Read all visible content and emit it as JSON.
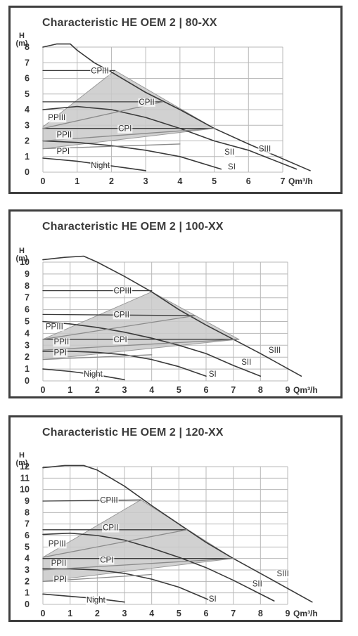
{
  "colors": {
    "curve": "#3a3a3a",
    "grid": "#b8b8b8",
    "fill": "#c9c9c9",
    "border": "#3e3e3e",
    "text": "#333333"
  },
  "chart_data": [
    {
      "type": "line",
      "title": "Characteristic HE OEM 2 | 80-XX",
      "ylabel": "H (m)",
      "ylabel_top": "H",
      "ylabel_bottom": "(m)",
      "xlabel": "Qm³/h",
      "xlim": [
        0,
        7
      ],
      "ylim": [
        0,
        8
      ],
      "x_ticks": [
        "0",
        "1",
        "2",
        "3",
        "4",
        "5",
        "6",
        "7"
      ],
      "y_ticks": [
        "0",
        "1",
        "2",
        "3",
        "4",
        "5",
        "6",
        "7",
        "8"
      ],
      "grid": true,
      "operating_area": [
        [
          0,
          2.9
        ],
        [
          2.1,
          6.5
        ],
        [
          5.0,
          2.8
        ],
        [
          0,
          1.5
        ]
      ],
      "series": [
        {
          "name": "SIII",
          "x": [
            0,
            0.4,
            0.8,
            1.0,
            1.5,
            2.0,
            3.0,
            4.0,
            5.0,
            6.0,
            7.8
          ],
          "y": [
            8.0,
            8.2,
            8.2,
            7.8,
            7.0,
            6.4,
            5.1,
            4.0,
            2.8,
            1.8,
            0.1
          ]
        },
        {
          "name": "SII",
          "x": [
            0,
            1.0,
            2.0,
            3.0,
            4.0,
            5.0,
            6.0,
            7.4
          ],
          "y": [
            4.0,
            4.2,
            4.0,
            3.5,
            2.8,
            2.0,
            1.4,
            0.2
          ]
        },
        {
          "name": "SI",
          "x": [
            0,
            1.0,
            2.0,
            3.0,
            4.0,
            5.2
          ],
          "y": [
            2.0,
            1.9,
            1.7,
            1.4,
            1.0,
            0.2
          ]
        },
        {
          "name": "Night",
          "x": [
            0,
            1.0,
            2.0,
            3.0
          ],
          "y": [
            0.9,
            0.7,
            0.4,
            0.1
          ]
        },
        {
          "name": "CPIII",
          "x": [
            0,
            2.1
          ],
          "y": [
            6.5,
            6.5
          ]
        },
        {
          "name": "CPII",
          "x": [
            0,
            3.5
          ],
          "y": [
            4.5,
            4.5
          ]
        },
        {
          "name": "CPI",
          "x": [
            0,
            5.0
          ],
          "y": [
            2.8,
            2.8
          ]
        },
        {
          "name": "PPIII",
          "x": [
            0,
            3.5
          ],
          "y": [
            2.8,
            4.5
          ]
        },
        {
          "name": "PPII",
          "x": [
            0,
            5.0
          ],
          "y": [
            2.0,
            2.8
          ]
        },
        {
          "name": "PPI",
          "x": [
            0,
            4.0
          ],
          "y": [
            1.5,
            1.8
          ]
        }
      ],
      "labels": [
        {
          "text": "CPIII",
          "x": 1.4,
          "y": 6.5
        },
        {
          "text": "CPII",
          "x": 2.8,
          "y": 4.5
        },
        {
          "text": "CPI",
          "x": 2.2,
          "y": 2.8
        },
        {
          "text": "PPIII",
          "x": 0.15,
          "y": 3.5
        },
        {
          "text": "PPII",
          "x": 0.4,
          "y": 2.4
        },
        {
          "text": "PPI",
          "x": 0.4,
          "y": 1.35
        },
        {
          "text": "Night",
          "x": 1.4,
          "y": 0.45
        },
        {
          "text": "SIII",
          "x": 6.3,
          "y": 1.5
        },
        {
          "text": "SII",
          "x": 5.3,
          "y": 1.3
        },
        {
          "text": "SI",
          "x": 5.4,
          "y": 0.35
        }
      ]
    },
    {
      "type": "line",
      "title": "Characteristic HE OEM 2 | 100-XX",
      "ylabel": "H (m)",
      "ylabel_top": "H",
      "ylabel_bottom": "(m)",
      "xlabel": "Qm³/h",
      "xlim": [
        0,
        9
      ],
      "ylim": [
        0,
        10
      ],
      "x_ticks": [
        "0",
        "1",
        "2",
        "3",
        "4",
        "5",
        "6",
        "7",
        "8",
        "9"
      ],
      "y_ticks": [
        "0",
        "1",
        "2",
        "3",
        "4",
        "5",
        "6",
        "7",
        "8",
        "9",
        "10"
      ],
      "grid": true,
      "operating_area": [
        [
          0,
          3.5
        ],
        [
          4.0,
          7.5
        ],
        [
          7.2,
          3.5
        ],
        [
          0,
          1.8
        ]
      ],
      "series": [
        {
          "name": "SIII",
          "x": [
            0,
            0.8,
            1.5,
            2.0,
            3.0,
            4.0,
            5.0,
            6.0,
            7.0,
            8.0,
            9.5
          ],
          "y": [
            10.2,
            10.4,
            10.5,
            10.0,
            8.8,
            7.5,
            6.0,
            4.7,
            3.5,
            2.3,
            0.4
          ]
        },
        {
          "name": "SII",
          "x": [
            0,
            1.0,
            2.0,
            3.0,
            4.0,
            5.0,
            6.0,
            7.0,
            8.0
          ],
          "y": [
            5.0,
            4.8,
            4.5,
            4.1,
            3.6,
            3.0,
            2.3,
            1.3,
            0.4
          ]
        },
        {
          "name": "SI",
          "x": [
            0,
            1.0,
            2.0,
            3.0,
            4.0,
            5.0,
            6.0
          ],
          "y": [
            2.5,
            2.5,
            2.4,
            2.2,
            1.8,
            1.2,
            0.4
          ]
        },
        {
          "name": "Night",
          "x": [
            0,
            1.0,
            2.0,
            3.0
          ],
          "y": [
            1.0,
            0.8,
            0.5,
            0.1
          ]
        },
        {
          "name": "CPIII",
          "x": [
            0,
            4.0
          ],
          "y": [
            7.6,
            7.6
          ]
        },
        {
          "name": "CPII",
          "x": [
            0,
            5.6
          ],
          "y": [
            5.6,
            5.5
          ]
        },
        {
          "name": "CPI",
          "x": [
            0,
            7.2
          ],
          "y": [
            3.5,
            3.5
          ]
        },
        {
          "name": "PPIII",
          "x": [
            0,
            5.6
          ],
          "y": [
            3.5,
            5.5
          ]
        },
        {
          "name": "PPII",
          "x": [
            0,
            7.2
          ],
          "y": [
            2.6,
            3.5
          ]
        },
        {
          "name": "PPI",
          "x": [
            0,
            4.0
          ],
          "y": [
            1.8,
            2.2
          ]
        }
      ],
      "labels": [
        {
          "text": "CPIII",
          "x": 2.6,
          "y": 7.6
        },
        {
          "text": "CPII",
          "x": 2.6,
          "y": 5.6
        },
        {
          "text": "CPI",
          "x": 2.6,
          "y": 3.5
        },
        {
          "text": "PPIII",
          "x": 0.1,
          "y": 4.6
        },
        {
          "text": "PPII",
          "x": 0.4,
          "y": 3.3
        },
        {
          "text": "PPI",
          "x": 0.4,
          "y": 2.4
        },
        {
          "text": "Night",
          "x": 1.5,
          "y": 0.6
        },
        {
          "text": "SIII",
          "x": 8.3,
          "y": 2.6
        },
        {
          "text": "SII",
          "x": 7.3,
          "y": 1.6
        },
        {
          "text": "SI",
          "x": 6.1,
          "y": 0.6
        }
      ]
    },
    {
      "type": "line",
      "title": "Characteristic HE OEM 2 | 120-XX",
      "ylabel": "H (m)",
      "ylabel_top": "H",
      "ylabel_bottom": "(m)",
      "xlabel": "Qm³/h",
      "xlim": [
        0,
        9
      ],
      "ylim": [
        0,
        12
      ],
      "x_ticks": [
        "0",
        "1",
        "2",
        "3",
        "4",
        "5",
        "6",
        "7",
        "8",
        "9"
      ],
      "y_ticks": [
        "0",
        "1",
        "2",
        "3",
        "4",
        "5",
        "6",
        "7",
        "8",
        "9",
        "10",
        "11",
        "12"
      ],
      "grid": true,
      "operating_area": [
        [
          0,
          4.1
        ],
        [
          3.6,
          9.1
        ],
        [
          7.0,
          4.0
        ],
        [
          0,
          2.0
        ]
      ],
      "series": [
        {
          "name": "SIII",
          "x": [
            0,
            0.8,
            1.5,
            2.0,
            3.0,
            4.0,
            5.0,
            6.0,
            7.0,
            8.0,
            9.9
          ],
          "y": [
            11.9,
            12.1,
            12.1,
            11.7,
            10.3,
            8.6,
            7.0,
            5.4,
            4.0,
            2.7,
            0.2
          ]
        },
        {
          "name": "SII",
          "x": [
            0,
            1.0,
            2.0,
            3.0,
            4.0,
            5.0,
            6.0,
            7.0,
            8.5
          ],
          "y": [
            6.1,
            6.2,
            6.0,
            5.6,
            4.9,
            4.1,
            3.2,
            2.1,
            0.3
          ]
        },
        {
          "name": "SI",
          "x": [
            0,
            1.0,
            2.0,
            3.0,
            4.0,
            5.0,
            6.2
          ],
          "y": [
            3.1,
            3.1,
            3.0,
            2.7,
            2.2,
            1.5,
            0.3
          ]
        },
        {
          "name": "Night",
          "x": [
            0,
            1.0,
            2.0,
            3.0
          ],
          "y": [
            0.9,
            0.7,
            0.5,
            0.2
          ]
        },
        {
          "name": "CPIII",
          "x": [
            0,
            3.6
          ],
          "y": [
            9.0,
            9.1
          ]
        },
        {
          "name": "CPII",
          "x": [
            0,
            5.3
          ],
          "y": [
            6.5,
            6.5
          ]
        },
        {
          "name": "CPI",
          "x": [
            0,
            7.0
          ],
          "y": [
            4.0,
            4.0
          ]
        },
        {
          "name": "PPIII",
          "x": [
            0,
            5.3
          ],
          "y": [
            4.1,
            6.5
          ]
        },
        {
          "name": "PPII",
          "x": [
            0,
            7.0
          ],
          "y": [
            3.0,
            4.0
          ]
        },
        {
          "name": "PPI",
          "x": [
            0,
            4.0
          ],
          "y": [
            2.0,
            2.6
          ]
        }
      ],
      "labels": [
        {
          "text": "CPIII",
          "x": 2.1,
          "y": 9.1
        },
        {
          "text": "CPII",
          "x": 2.2,
          "y": 6.7
        },
        {
          "text": "CPI",
          "x": 2.1,
          "y": 3.9
        },
        {
          "text": "PPIII",
          "x": 0.2,
          "y": 5.3
        },
        {
          "text": "PPII",
          "x": 0.3,
          "y": 3.6
        },
        {
          "text": "PPI",
          "x": 0.4,
          "y": 2.2
        },
        {
          "text": "Night",
          "x": 1.6,
          "y": 0.4
        },
        {
          "text": "SIII",
          "x": 8.6,
          "y": 2.7
        },
        {
          "text": "SII",
          "x": 7.7,
          "y": 1.8
        },
        {
          "text": "SI",
          "x": 6.1,
          "y": 0.5
        }
      ]
    }
  ]
}
